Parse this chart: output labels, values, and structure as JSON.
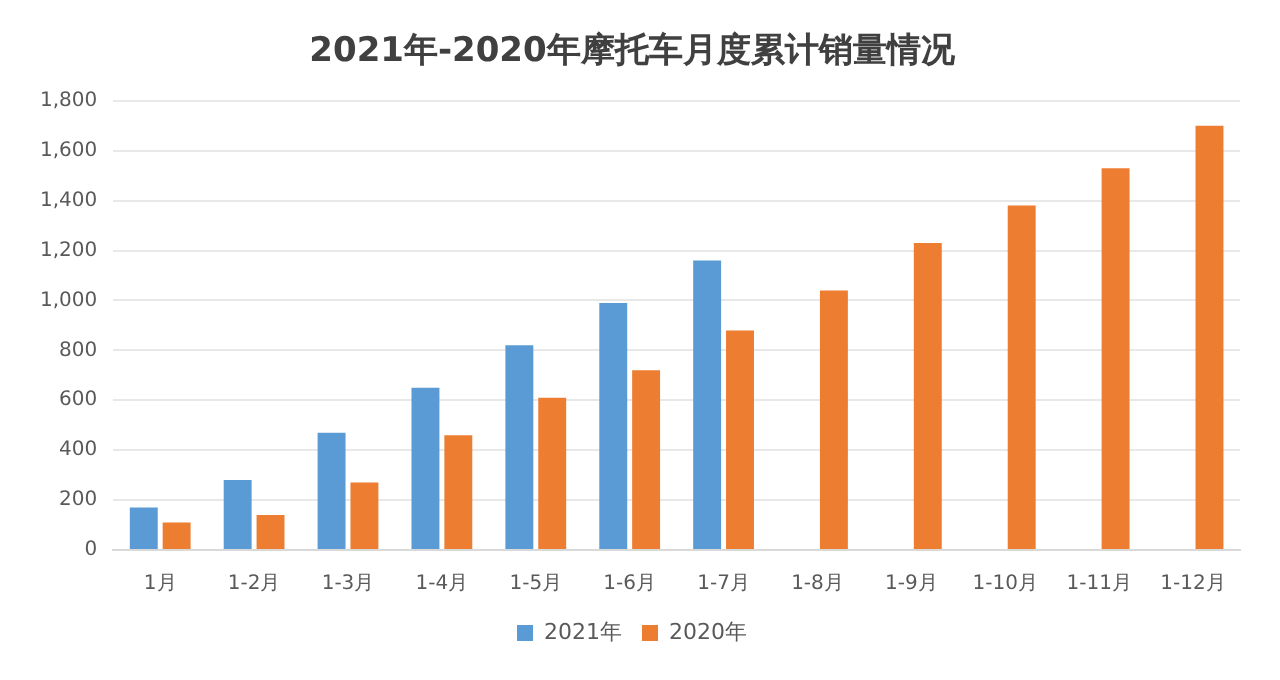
{
  "chart_data": {
    "type": "bar",
    "title": "2021年-2020年摩托车月度累计销量情况",
    "categories": [
      "1月",
      "1-2月",
      "1-3月",
      "1-4月",
      "1-5月",
      "1-6月",
      "1-7月",
      "1-8月",
      "1-9月",
      "1-10月",
      "1-11月",
      "1-12月"
    ],
    "series": [
      {
        "name": "2021年",
        "color": "#5b9bd5",
        "values": [
          170,
          280,
          470,
          650,
          820,
          990,
          1160,
          null,
          null,
          null,
          null,
          null
        ]
      },
      {
        "name": "2020年",
        "color": "#ed7d31",
        "values": [
          110,
          140,
          270,
          460,
          610,
          720,
          880,
          1040,
          1230,
          1380,
          1530,
          1700
        ]
      }
    ],
    "ylim": [
      0,
      1800
    ],
    "yticks": [
      {
        "value": 0,
        "label": "0"
      },
      {
        "value": 200,
        "label": "200"
      },
      {
        "value": 400,
        "label": "400"
      },
      {
        "value": 600,
        "label": "600"
      },
      {
        "value": 800,
        "label": "800"
      },
      {
        "value": 1000,
        "label": "1,000"
      },
      {
        "value": 1200,
        "label": "1,200"
      },
      {
        "value": 1400,
        "label": "1,400"
      },
      {
        "value": 1600,
        "label": "1,600"
      },
      {
        "value": 1800,
        "label": "1,800"
      }
    ],
    "grid": "y",
    "legend": "bottom"
  }
}
